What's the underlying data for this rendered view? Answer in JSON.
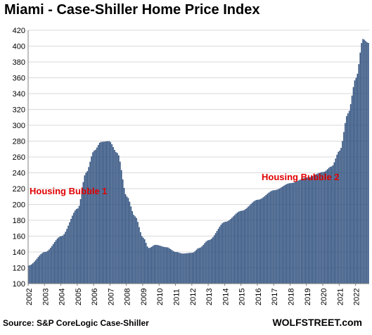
{
  "chart_data": {
    "type": "bar",
    "title": "Miami - Case-Shiller Home Price Index",
    "xlabel": "",
    "ylabel": "",
    "ylim": [
      100,
      420
    ],
    "yticks": [
      100,
      120,
      140,
      160,
      180,
      200,
      220,
      240,
      260,
      280,
      300,
      320,
      340,
      360,
      380,
      400,
      420
    ],
    "year_labels": [
      "2002",
      "2003",
      "2004",
      "2005",
      "2006",
      "2007",
      "2008",
      "2009",
      "2010",
      "2011",
      "2012",
      "2013",
      "2014",
      "2015",
      "2016",
      "2017",
      "2018",
      "2019",
      "2020",
      "2021",
      "2022"
    ],
    "x_start": "Jan 2002",
    "x_end": "Oct 2022",
    "frequency": "monthly",
    "anchor_points": [
      [
        "2002-01",
        123
      ],
      [
        "2003-01",
        140
      ],
      [
        "2004-01",
        160
      ],
      [
        "2005-01",
        195
      ],
      [
        "2005-07",
        240
      ],
      [
        "2006-01",
        268
      ],
      [
        "2006-06",
        279
      ],
      [
        "2006-12",
        280
      ],
      [
        "2007-06",
        265
      ],
      [
        "2008-01",
        210
      ],
      [
        "2008-07",
        185
      ],
      [
        "2009-01",
        158
      ],
      [
        "2009-05",
        145
      ],
      [
        "2009-10",
        149
      ],
      [
        "2010-06",
        146
      ],
      [
        "2011-01",
        140
      ],
      [
        "2011-06",
        138
      ],
      [
        "2012-01",
        139
      ],
      [
        "2012-06",
        145
      ],
      [
        "2013-01",
        155
      ],
      [
        "2014-01",
        178
      ],
      [
        "2015-01",
        192
      ],
      [
        "2016-01",
        206
      ],
      [
        "2017-01",
        218
      ],
      [
        "2018-01",
        227
      ],
      [
        "2019-01",
        234
      ],
      [
        "2020-01",
        241
      ],
      [
        "2020-07",
        248
      ],
      [
        "2021-01",
        268
      ],
      [
        "2021-07",
        315
      ],
      [
        "2022-01",
        360
      ],
      [
        "2022-06",
        409
      ],
      [
        "2022-10",
        404
      ]
    ],
    "annotations": [
      "Housing Bubble 1",
      "Housing Bubble 2"
    ],
    "source": "Source: S&P CoreLogic Case-Shiller",
    "brand": "WOLFSTREET.com",
    "bar_color": "#2e4f7d",
    "annotation_color": "#e00000",
    "grid": true,
    "gridline_color": "#d9d9d9"
  }
}
